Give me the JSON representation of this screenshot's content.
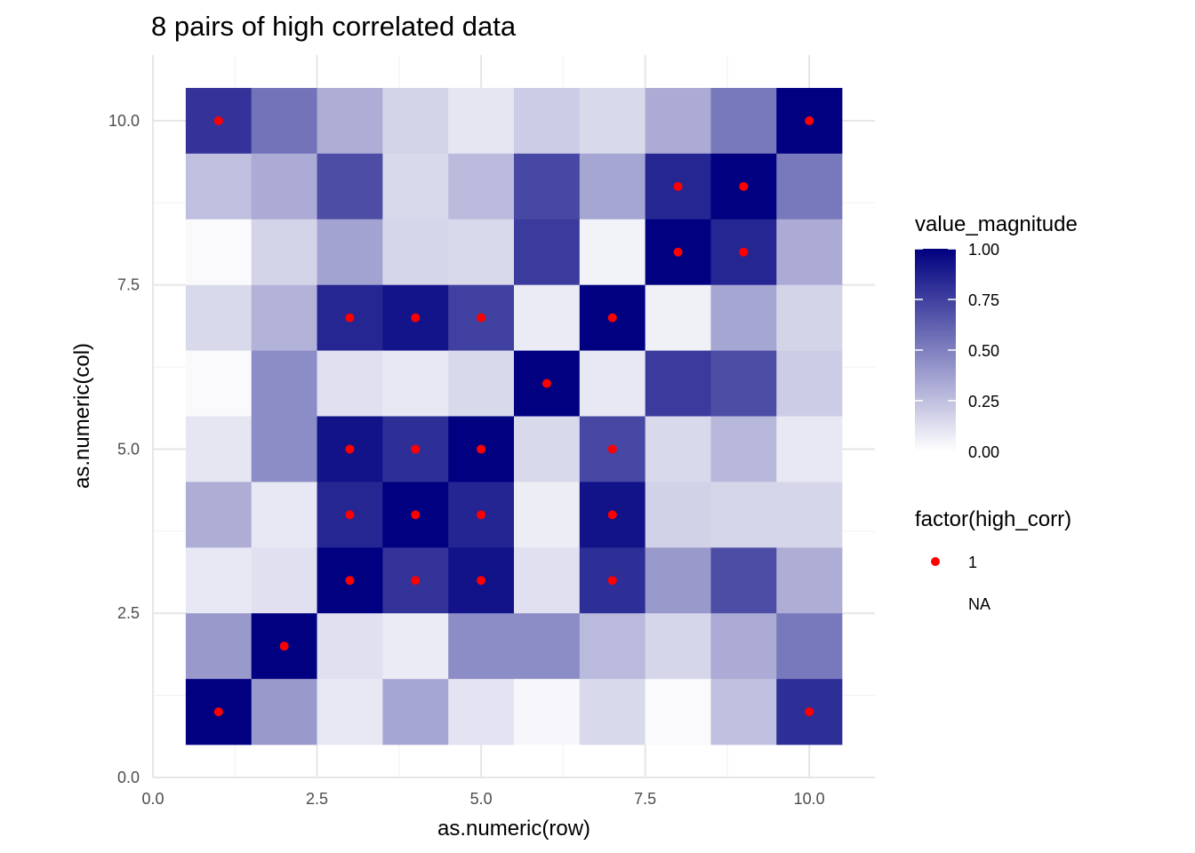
{
  "chart_data": {
    "type": "heatmap",
    "title": "8 pairs of high correlated data",
    "xlabel": "as.numeric(row)",
    "ylabel": "as.numeric(col)",
    "xlim": [
      0,
      11
    ],
    "ylim": [
      0,
      11
    ],
    "x_ticks": [
      0.0,
      2.5,
      5.0,
      7.5,
      10.0
    ],
    "x_tick_labels": [
      "0.0",
      "2.5",
      "5.0",
      "7.5",
      "10.0"
    ],
    "y_ticks": [
      0.0,
      2.5,
      5.0,
      7.5,
      10.0
    ],
    "y_tick_labels": [
      "0.0",
      "2.5",
      "5.0",
      "7.5",
      "10.0"
    ],
    "grid": true,
    "fill_legend": {
      "title": "value_magnitude",
      "low_color": "#ffffff",
      "high_color": "#000080",
      "breaks": [
        0.0,
        0.25,
        0.5,
        0.75,
        1.0
      ],
      "break_labels": [
        "0.00",
        "0.25",
        "0.50",
        "0.75",
        "1.00"
      ]
    },
    "point_legend": {
      "title": "factor(high_corr)",
      "entries": [
        "1",
        "NA"
      ],
      "point_color": "#ff0000"
    },
    "legend_placement": "right",
    "rows_y_desc": [
      10,
      9,
      8,
      7,
      6,
      5,
      4,
      3,
      2,
      1
    ],
    "x_values": [
      1,
      2,
      3,
      4,
      5,
      6,
      7,
      8,
      9,
      10
    ],
    "values": [
      [
        0.8,
        0.55,
        0.32,
        0.17,
        0.1,
        0.2,
        0.15,
        0.33,
        0.53,
        1.0
      ],
      [
        0.25,
        0.33,
        0.7,
        0.15,
        0.27,
        0.72,
        0.35,
        0.85,
        1.0,
        0.53
      ],
      [
        0.02,
        0.17,
        0.36,
        0.16,
        0.15,
        0.77,
        0.05,
        1.0,
        0.85,
        0.33
      ],
      [
        0.15,
        0.3,
        0.85,
        0.92,
        0.75,
        0.08,
        1.0,
        0.06,
        0.35,
        0.17
      ],
      [
        0.02,
        0.45,
        0.12,
        0.09,
        0.15,
        1.0,
        0.09,
        0.77,
        0.7,
        0.2
      ],
      [
        0.1,
        0.45,
        0.93,
        0.82,
        1.0,
        0.15,
        0.72,
        0.15,
        0.28,
        0.09
      ],
      [
        0.32,
        0.09,
        0.85,
        1.0,
        0.86,
        0.07,
        0.93,
        0.18,
        0.16,
        0.16
      ],
      [
        0.09,
        0.12,
        1.0,
        0.8,
        0.93,
        0.12,
        0.82,
        0.4,
        0.7,
        0.32
      ],
      [
        0.4,
        1.0,
        0.12,
        0.08,
        0.45,
        0.45,
        0.27,
        0.16,
        0.33,
        0.53
      ],
      [
        1.0,
        0.4,
        0.09,
        0.35,
        0.11,
        0.03,
        0.15,
        0.02,
        0.25,
        0.82
      ]
    ],
    "high_corr_points": [
      [
        1,
        10
      ],
      [
        10,
        10
      ],
      [
        8,
        9
      ],
      [
        9,
        9
      ],
      [
        8,
        8
      ],
      [
        9,
        8
      ],
      [
        3,
        7
      ],
      [
        4,
        7
      ],
      [
        5,
        7
      ],
      [
        7,
        7
      ],
      [
        6,
        6
      ],
      [
        3,
        5
      ],
      [
        4,
        5
      ],
      [
        5,
        5
      ],
      [
        7,
        5
      ],
      [
        3,
        4
      ],
      [
        4,
        4
      ],
      [
        5,
        4
      ],
      [
        7,
        4
      ],
      [
        3,
        3
      ],
      [
        4,
        3
      ],
      [
        5,
        3
      ],
      [
        7,
        3
      ],
      [
        2,
        2
      ],
      [
        1,
        1
      ],
      [
        10,
        1
      ]
    ]
  }
}
